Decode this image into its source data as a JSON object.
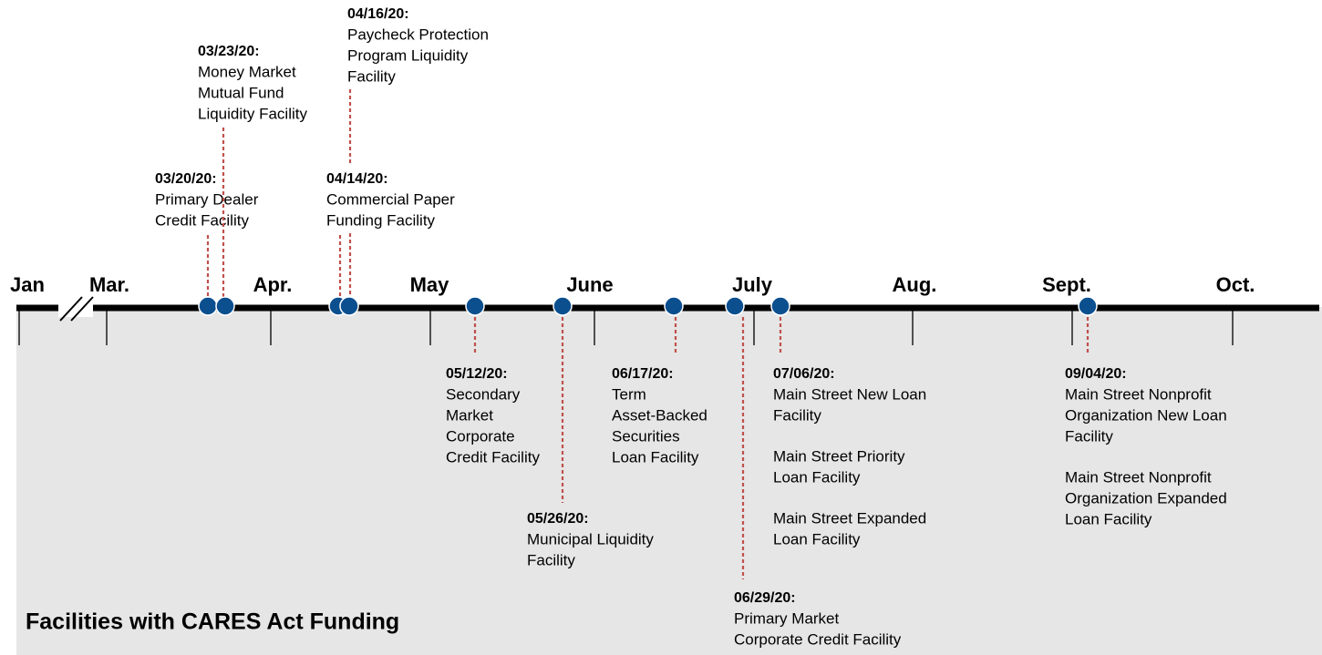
{
  "months": [
    "Jan",
    "Mar.",
    "Apr.",
    "May",
    "June",
    "July",
    "Aug.",
    "Sept.",
    "Oct."
  ],
  "events": [
    {
      "date": "03/20/20:",
      "facilities": [
        [
          "Primary Dealer",
          "Credit Facility"
        ]
      ]
    },
    {
      "date": "03/23/20:",
      "facilities": [
        [
          "Money Market",
          "Mutual Fund",
          "Liquidity Facility"
        ]
      ]
    },
    {
      "date": "04/14/20:",
      "facilities": [
        [
          "Commercial Paper",
          "Funding Facility"
        ]
      ]
    },
    {
      "date": "04/16/20:",
      "facilities": [
        [
          "Paycheck Protection",
          "Program Liquidity",
          "Facility"
        ]
      ]
    },
    {
      "date": "05/12/20:",
      "facilities": [
        [
          "Secondary",
          "Market",
          "Corporate",
          "Credit Facility"
        ]
      ]
    },
    {
      "date": "05/26/20:",
      "facilities": [
        [
          "Municipal Liquidity",
          "Facility"
        ]
      ]
    },
    {
      "date": "06/17/20:",
      "facilities": [
        [
          "Term",
          "Asset-Backed",
          "Securities",
          "Loan Facility"
        ]
      ]
    },
    {
      "date": "06/29/20:",
      "facilities": [
        [
          "Primary Market",
          "Corporate Credit Facility"
        ]
      ]
    },
    {
      "date": "07/06/20:",
      "facilities": [
        [
          "Main Street New Loan",
          "Facility"
        ],
        [
          "Main Street Priority",
          "Loan Facility"
        ],
        [
          "Main Street Expanded",
          "Loan Facility"
        ]
      ]
    },
    {
      "date": "09/04/20:",
      "facilities": [
        [
          "Main Street Nonprofit",
          "Organization New Loan",
          "Facility"
        ],
        [
          "Main Street Nonprofit",
          "Organization Expanded",
          "Loan Facility"
        ]
      ]
    }
  ],
  "caption": "Facilities with CARES Act Funding"
}
